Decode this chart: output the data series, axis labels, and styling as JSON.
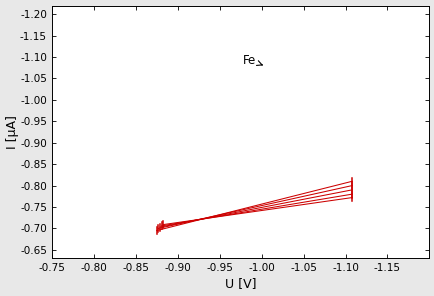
{
  "xlabel": "U [V]",
  "ylabel": "I [µA]",
  "xticks": [
    -0.75,
    -0.8,
    -0.85,
    -0.9,
    -0.95,
    -1.0,
    -1.05,
    -1.1,
    -1.15
  ],
  "yticks": [
    -0.65,
    -0.7,
    -0.75,
    -0.8,
    -0.85,
    -0.9,
    -0.95,
    -1.0,
    -1.05,
    -1.1,
    -1.15,
    -1.2
  ],
  "annotation_label": "Fe",
  "bg_color": "#e8e8e8",
  "plot_bg": "#ffffff",
  "black_color": "#000000",
  "blue_color": "#0000bb",
  "red_color": "#cc0000"
}
